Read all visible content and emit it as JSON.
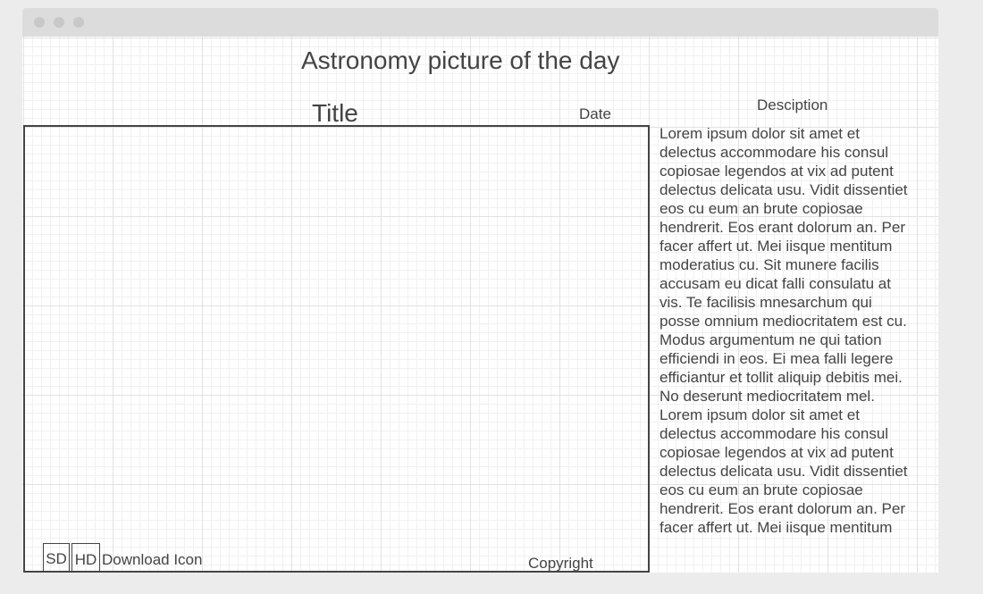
{
  "header": {
    "title": "Astronomy picture of the day"
  },
  "picture": {
    "title": "Title",
    "date": "Date",
    "sd": "SD",
    "hd": "HD",
    "download": "Download Icon",
    "copyright": "Copyright"
  },
  "description": {
    "heading": "Desciption",
    "lines": [
      "Lorem ipsum dolor sit amet et",
      "delectus accommodare his consul",
      "copiosae legendos at vix ad putent",
      "delectus delicata usu. Vidit dissentiet",
      "eos cu eum an brute copiosae",
      "hendrerit. Eos erant dolorum an. Per",
      "facer affert ut. Mei iisque mentitum",
      "moderatius cu. Sit munere facilis",
      "accusam eu dicat falli consulatu at",
      "vis. Te facilisis mnesarchum qui",
      "posse omnium mediocritatem est cu.",
      "Modus argumentum ne qui tation",
      "efficiendi in eos. Ei mea falli legere",
      "efficiantur et tollit aliquip debitis mei.",
      "No deserunt mediocritatem mel.",
      "Lorem ipsum dolor sit amet et",
      "delectus accommodare his consul",
      "copiosae legendos at vix ad putent",
      "delectus delicata usu. Vidit dissentiet",
      "eos cu eum an brute copiosae",
      "hendrerit. Eos erant dolorum an. Per",
      "facer affert ut. Mei iisque mentitum"
    ]
  }
}
